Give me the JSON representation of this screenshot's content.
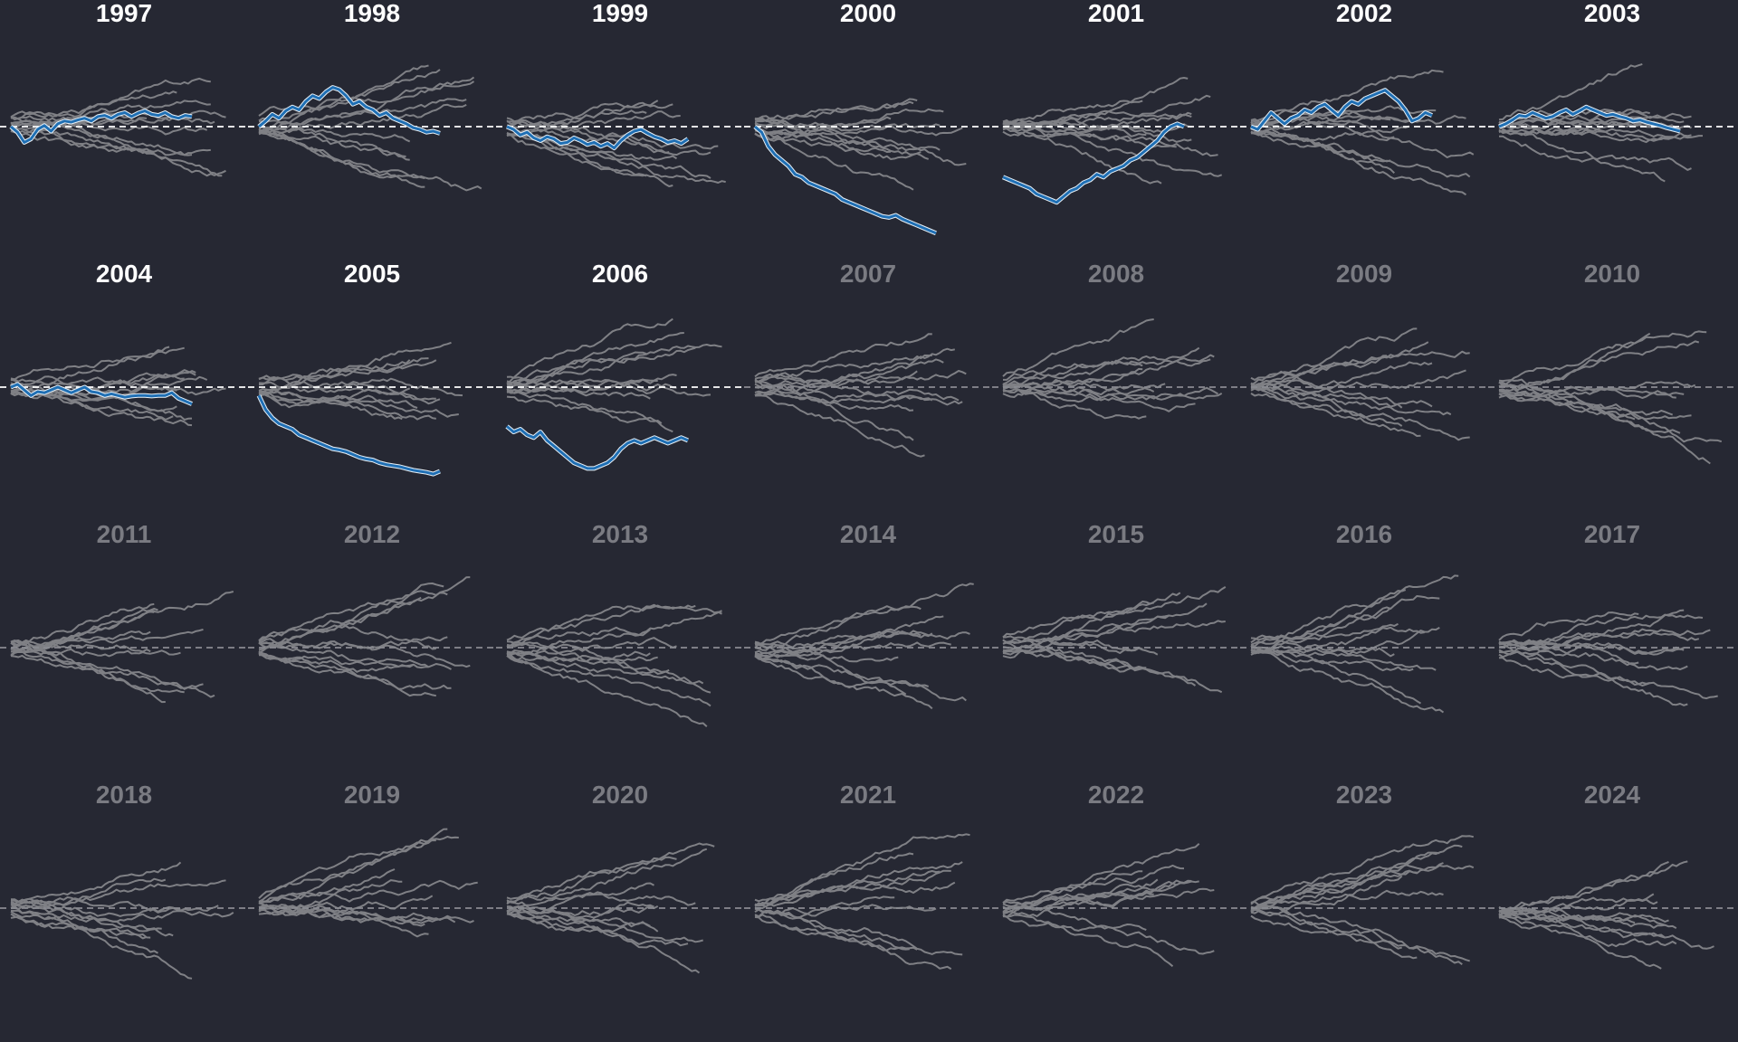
{
  "background_color": "#262833",
  "highlight_color": "#1f6fb4",
  "line_color": "#c8c8c8",
  "active_title_color": "#ffffff",
  "inactive_title_color": "#7a7b82",
  "chart_data": {
    "type": "line",
    "layout": "small-multiples",
    "columns": 7,
    "grid": false,
    "axes_shown": false,
    "reference_line": {
      "y": 0,
      "style": "dashed"
    },
    "panels": [
      {
        "title": "1997",
        "active": true,
        "highlight": [
          0.0,
          -0.1,
          -0.28,
          -0.22,
          -0.05,
          0.02,
          -0.08,
          0.05,
          0.1,
          0.08,
          0.12,
          0.15,
          0.1,
          0.18,
          0.2,
          0.15,
          0.22,
          0.25,
          0.18,
          0.24,
          0.28,
          0.22,
          0.2,
          0.25,
          0.18,
          0.15,
          0.2,
          0.18
        ]
      },
      {
        "title": "1998",
        "active": true,
        "highlight": [
          0.0,
          0.1,
          0.22,
          0.15,
          0.28,
          0.35,
          0.3,
          0.45,
          0.55,
          0.5,
          0.62,
          0.7,
          0.66,
          0.55,
          0.4,
          0.45,
          0.35,
          0.3,
          0.2,
          0.25,
          0.15,
          0.1,
          0.05,
          -0.02,
          -0.05,
          -0.1,
          -0.08,
          -0.12
        ]
      },
      {
        "title": "1999",
        "active": true,
        "highlight": [
          0.0,
          -0.05,
          -0.15,
          -0.1,
          -0.2,
          -0.25,
          -0.18,
          -0.22,
          -0.3,
          -0.28,
          -0.2,
          -0.25,
          -0.32,
          -0.28,
          -0.35,
          -0.3,
          -0.38,
          -0.25,
          -0.15,
          -0.08,
          -0.05,
          -0.12,
          -0.18,
          -0.22,
          -0.28,
          -0.25,
          -0.3,
          -0.22
        ]
      },
      {
        "title": "2000",
        "active": true,
        "highlight": [
          0.0,
          -0.1,
          -0.35,
          -0.5,
          -0.6,
          -0.7,
          -0.85,
          -0.9,
          -1.0,
          -1.05,
          -1.1,
          -1.15,
          -1.2,
          -1.3,
          -1.35,
          -1.4,
          -1.45,
          -1.5,
          -1.55,
          -1.6,
          -1.62,
          -1.58,
          -1.65,
          -1.7,
          -1.75,
          -1.8,
          -1.85,
          -1.9
        ]
      },
      {
        "title": "2001",
        "active": true,
        "highlight": [
          -0.9,
          -0.95,
          -1.0,
          -1.05,
          -1.1,
          -1.2,
          -1.25,
          -1.3,
          -1.35,
          -1.25,
          -1.15,
          -1.1,
          -1.0,
          -0.95,
          -0.85,
          -0.9,
          -0.8,
          -0.75,
          -0.7,
          -0.6,
          -0.55,
          -0.45,
          -0.35,
          -0.25,
          -0.1,
          0.0,
          0.05,
          0.0
        ]
      },
      {
        "title": "2002",
        "active": true,
        "highlight": [
          0.0,
          -0.05,
          0.1,
          0.25,
          0.15,
          0.05,
          0.15,
          0.2,
          0.3,
          0.25,
          0.35,
          0.4,
          0.3,
          0.2,
          0.35,
          0.45,
          0.4,
          0.5,
          0.55,
          0.6,
          0.65,
          0.55,
          0.45,
          0.3,
          0.1,
          0.15,
          0.25,
          0.2
        ]
      },
      {
        "title": "2003",
        "active": true,
        "highlight": [
          0.0,
          0.05,
          0.12,
          0.2,
          0.18,
          0.25,
          0.2,
          0.15,
          0.18,
          0.25,
          0.3,
          0.22,
          0.28,
          0.35,
          0.3,
          0.25,
          0.2,
          0.22,
          0.18,
          0.15,
          0.1,
          0.12,
          0.08,
          0.05,
          0.02,
          -0.02,
          -0.05,
          -0.08
        ]
      },
      {
        "title": "2004",
        "active": true,
        "highlight": [
          0.0,
          0.05,
          -0.05,
          -0.15,
          -0.08,
          -0.1,
          -0.05,
          0.0,
          -0.05,
          -0.1,
          -0.05,
          0.0,
          -0.08,
          -0.1,
          -0.15,
          -0.12,
          -0.15,
          -0.18,
          -0.16,
          -0.15,
          -0.15,
          -0.16,
          -0.15,
          -0.15,
          -0.1,
          -0.2,
          -0.25,
          -0.3
        ]
      },
      {
        "title": "2005",
        "active": true,
        "highlight": [
          -0.15,
          -0.4,
          -0.55,
          -0.65,
          -0.7,
          -0.75,
          -0.85,
          -0.9,
          -0.95,
          -1.0,
          -1.05,
          -1.1,
          -1.12,
          -1.15,
          -1.2,
          -1.25,
          -1.28,
          -1.3,
          -1.35,
          -1.38,
          -1.4,
          -1.42,
          -1.45,
          -1.48,
          -1.5,
          -1.52,
          -1.55,
          -1.5
        ]
      },
      {
        "title": "2006",
        "active": true,
        "highlight": [
          -0.7,
          -0.8,
          -0.75,
          -0.85,
          -0.9,
          -0.8,
          -0.95,
          -1.05,
          -1.15,
          -1.25,
          -1.35,
          -1.4,
          -1.45,
          -1.45,
          -1.4,
          -1.35,
          -1.25,
          -1.1,
          -1.0,
          -0.95,
          -1.0,
          -0.95,
          -0.9,
          -0.95,
          -1.0,
          -0.95,
          -0.9,
          -0.95
        ]
      },
      {
        "title": "2007",
        "active": false,
        "highlight": null
      },
      {
        "title": "2008",
        "active": false,
        "highlight": null
      },
      {
        "title": "2009",
        "active": false,
        "highlight": null
      },
      {
        "title": "2010",
        "active": false,
        "highlight": null
      },
      {
        "title": "2011",
        "active": false,
        "highlight": null
      },
      {
        "title": "2012",
        "active": false,
        "highlight": null
      },
      {
        "title": "2013",
        "active": false,
        "highlight": null
      },
      {
        "title": "2014",
        "active": false,
        "highlight": null
      },
      {
        "title": "2015",
        "active": false,
        "highlight": null
      },
      {
        "title": "2016",
        "active": false,
        "highlight": null
      },
      {
        "title": "2017",
        "active": false,
        "highlight": null
      },
      {
        "title": "2018",
        "active": false,
        "highlight": null
      },
      {
        "title": "2019",
        "active": false,
        "highlight": null
      },
      {
        "title": "2020",
        "active": false,
        "highlight": null
      },
      {
        "title": "2021",
        "active": false,
        "highlight": null
      },
      {
        "title": "2022",
        "active": false,
        "highlight": null
      },
      {
        "title": "2023",
        "active": false,
        "highlight": null
      },
      {
        "title": "2024",
        "active": false,
        "highlight": null
      }
    ]
  }
}
